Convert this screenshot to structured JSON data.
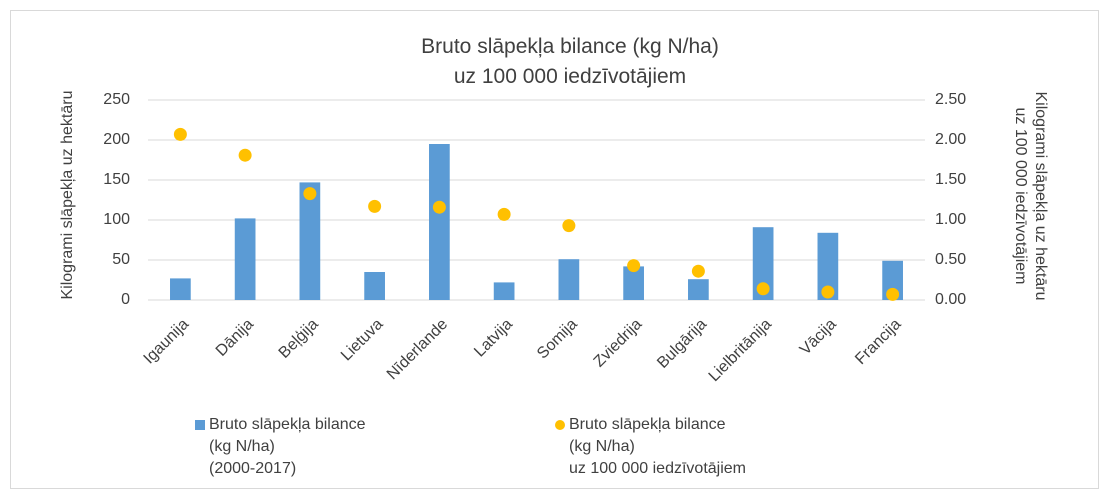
{
  "chart_data": {
    "type": "bar_dot",
    "title": "Bruto slāpekļa bilance (kg N/ha)\nuz 100 000 iedzīvotājiem",
    "ylabel": "Kilogrami slāpekļa uz hektāru",
    "y2label": "Kilogrami slāpekļa uz hektāru\nuz 100 000 iedzīvotājiem",
    "categories": [
      "Igaunija",
      "Dānija",
      "Beļģija",
      "Lietuva",
      "Nīderlande",
      "Latvija",
      "Somija",
      "Zviedrija",
      "Bulgārija",
      "Lielbritānija",
      "Vācija",
      "Francija"
    ],
    "series": [
      {
        "name": "Bruto slāpekļa bilance\n(kg N/ha)\n(2000-2017)",
        "color": "#5b9bd5",
        "kind": "bar",
        "values": [
          27,
          102,
          147,
          35,
          195,
          22,
          51,
          42,
          26,
          91,
          84,
          49
        ]
      },
      {
        "name": "Bruto slāpekļa bilance\n(kg N/ha)\nuz 100 000 iedzīvotājiem",
        "color": "#ffc000",
        "kind": "dot",
        "axis": "y2",
        "values": [
          2.07,
          1.81,
          1.33,
          1.17,
          1.16,
          1.07,
          0.93,
          0.43,
          0.36,
          0.14,
          0.1,
          0.07
        ]
      }
    ],
    "ylim": [
      0,
      250
    ],
    "yticks": [
      0,
      50,
      100,
      150,
      200,
      250
    ],
    "y2lim": [
      0,
      2.5
    ],
    "y2ticks": [
      {
        "value": 0,
        "label": "0.00"
      },
      {
        "value": 0.5,
        "label": "0.50"
      },
      {
        "value": 1,
        "label": "1.00"
      },
      {
        "value": 1.5,
        "label": "1.50"
      },
      {
        "value": 2,
        "label": "2.00"
      },
      {
        "value": 2.5,
        "label": "2.50"
      }
    ],
    "grid": true,
    "legend": "bottom"
  }
}
